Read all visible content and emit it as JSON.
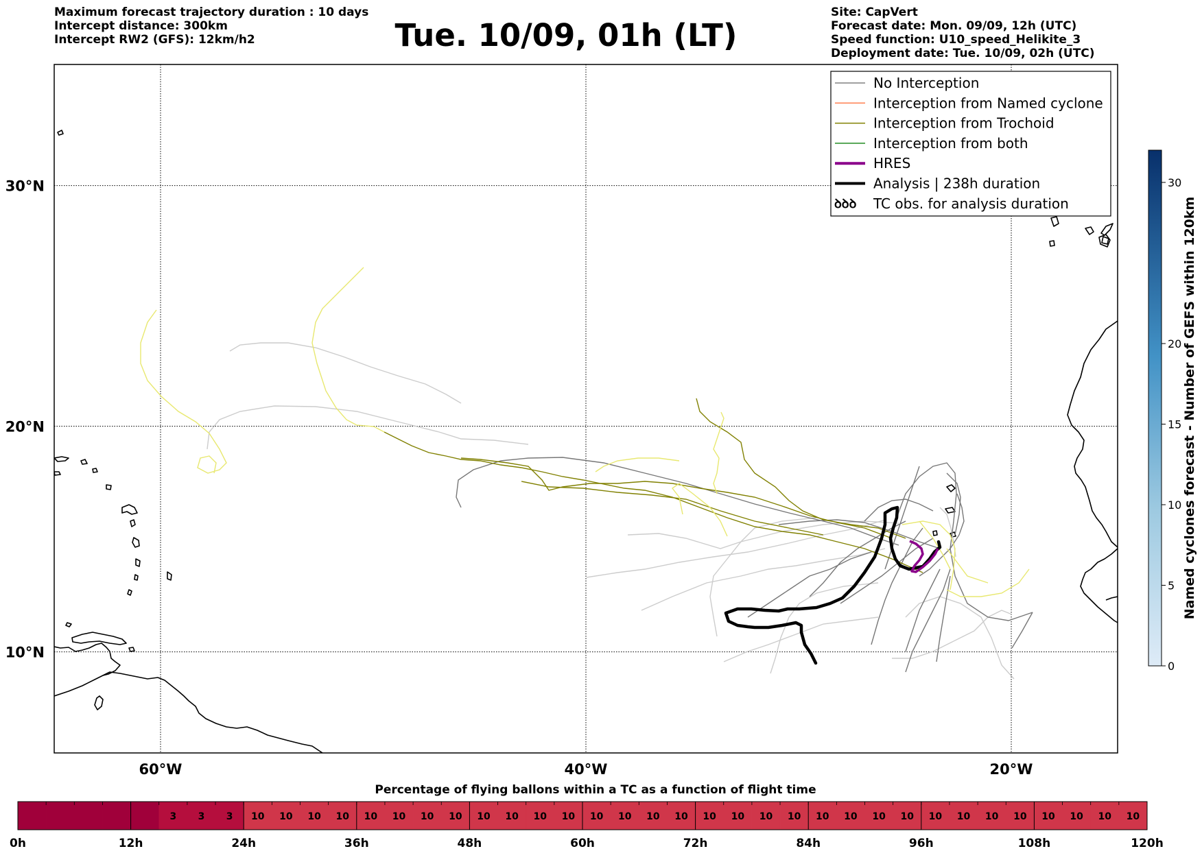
{
  "header": {
    "left_lines": [
      "Maximum forecast trajectory duration : 10 days",
      "Intercept distance: 300km",
      "Intercept RW2 (GFS):  12km/h2"
    ],
    "title": "Tue. 10/09, 01h (LT)",
    "right_lines": [
      "Site: CapVert",
      "Forecast date: Mon. 09/09, 12h (UTC)",
      "Speed function: U10_speed_Helikite_3",
      "Deployment date: Tue. 10/09, 02h (UTC)"
    ]
  },
  "map": {
    "extent": {
      "lon_min": -65,
      "lon_max": -15,
      "lat_min": 5.4,
      "lat_max": 34.7
    },
    "lat_ticks": [
      {
        "value": 30,
        "label": "30°N"
      },
      {
        "value": 20,
        "label": "20°N"
      },
      {
        "value": 10,
        "label": "10°N"
      }
    ],
    "lon_ticks": [
      {
        "value": -60,
        "label": "60°W"
      },
      {
        "value": -40,
        "label": "40°W"
      },
      {
        "value": -20,
        "label": "20°W"
      }
    ],
    "legend": {
      "placement": "top-right",
      "entries": [
        {
          "label": "No Interception",
          "color": "#808080",
          "style": "thin"
        },
        {
          "label": "Interception from Named cyclone",
          "color": "#ff7f50",
          "style": "thin"
        },
        {
          "label": "Interception from Trochoid",
          "color": "#808000",
          "style": "thin"
        },
        {
          "label": "Interception from both",
          "color": "#228b22",
          "style": "thin"
        },
        {
          "label": "HRES",
          "color": "#8b008b",
          "style": "thick"
        },
        {
          "label": "Analysis | 238h duration",
          "color": "#000000",
          "style": "thick"
        },
        {
          "label": "TC obs. for analysis duration",
          "color": "#000000",
          "style": "symbol"
        }
      ]
    },
    "tc_symbol_glyph": "ꝺꝺꝺ"
  },
  "colorbar": {
    "label": "Named cyclones forecast - Number of GEFS within 120km",
    "ticks": [
      0,
      5,
      10,
      15,
      20,
      30
    ],
    "max": 32,
    "color_low": "#deebf7",
    "color_high": "#08306b"
  },
  "timeline": {
    "title": "Percentage of flying ballons within a TC as a function of flight time",
    "tick_labels": [
      "0h",
      "12h",
      "24h",
      "36h",
      "48h",
      "60h",
      "72h",
      "84h",
      "96h",
      "108h",
      "120h"
    ],
    "max_hours": 120,
    "cell_hours": 3,
    "values": [
      0,
      0,
      0,
      0,
      0,
      3,
      3,
      3,
      10,
      10,
      10,
      10,
      10,
      10,
      10,
      10,
      10,
      10,
      10,
      10,
      10,
      10,
      10,
      10,
      10,
      10,
      10,
      10,
      10,
      10,
      10,
      10,
      10,
      10,
      10,
      10,
      10,
      10,
      10,
      10
    ],
    "color_zero": "#a0003a",
    "color_three": "#b50e3d",
    "color_ten": "#d0364a"
  }
}
